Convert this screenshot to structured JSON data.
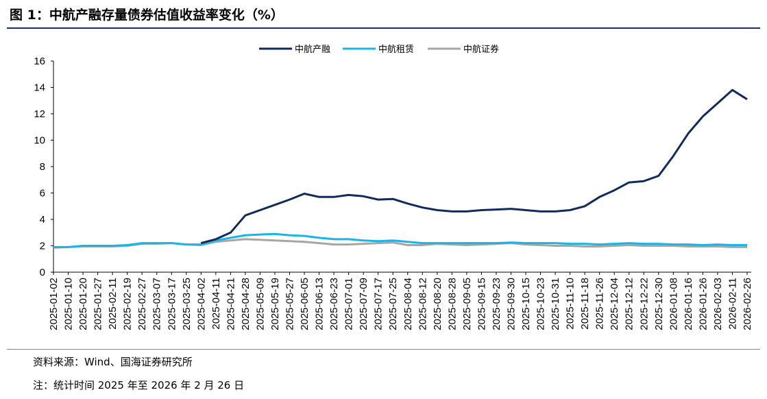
{
  "title": "图 1：中航产融存量债券估值收益率变化（%）",
  "footer": {
    "source": "资料来源：Wind、国海证券研究所",
    "note": "注：统计时间 2025 年至 2026 年 2 月 26 日"
  },
  "chart_data": {
    "type": "line",
    "title": "中航产融存量债券估值收益率变化（%）",
    "xlabel": "",
    "ylabel": "",
    "ylim": [
      0,
      16
    ],
    "yticks": [
      0,
      2,
      4,
      6,
      8,
      10,
      12,
      14,
      16
    ],
    "legend_position": "top-center",
    "grid": false,
    "x": [
      "2025-01-02",
      "2025-01-10",
      "2025-01-20",
      "2025-01-27",
      "2025-02-11",
      "2025-02-19",
      "2025-02-27",
      "2025-03-07",
      "2025-03-17",
      "2025-03-25",
      "2025-04-02",
      "2025-04-11",
      "2025-04-21",
      "2025-04-28",
      "2025-05-09",
      "2025-05-19",
      "2025-05-27",
      "2025-06-05",
      "2025-06-13",
      "2025-06-23",
      "2025-07-01",
      "2025-07-09",
      "2025-07-17",
      "2025-07-25",
      "2025-08-04",
      "2025-08-12",
      "2025-08-20",
      "2025-08-28",
      "2025-09-05",
      "2025-09-15",
      "2025-09-23",
      "2025-09-30",
      "2025-10-15",
      "2025-10-23",
      "2025-10-31",
      "2025-11-10",
      "2025-11-18",
      "2025-11-26",
      "2025-12-04",
      "2025-12-12",
      "2025-12-22",
      "2025-12-30",
      "2026-01-08",
      "2026-01-16",
      "2026-01-26",
      "2026-02-03",
      "2026-02-11",
      "2026-02-26"
    ],
    "series": [
      {
        "name": "中航产融",
        "color": "#0f2a5e",
        "values": [
          null,
          null,
          null,
          null,
          null,
          null,
          null,
          null,
          null,
          null,
          2.2,
          2.5,
          3.0,
          4.3,
          4.7,
          5.1,
          5.5,
          5.95,
          5.7,
          5.7,
          5.85,
          5.75,
          5.5,
          5.55,
          5.2,
          4.9,
          4.7,
          4.6,
          4.6,
          4.7,
          4.75,
          4.8,
          4.7,
          4.6,
          4.6,
          4.7,
          5.0,
          5.7,
          6.2,
          6.8,
          6.9,
          7.3,
          8.8,
          10.5,
          11.8,
          12.8,
          13.8,
          13.1
        ]
      },
      {
        "name": "中航租赁",
        "color": "#19b4e8",
        "values": [
          1.9,
          1.9,
          2.0,
          2.0,
          2.0,
          2.05,
          2.2,
          2.2,
          2.2,
          2.1,
          2.1,
          2.4,
          2.6,
          2.8,
          2.85,
          2.9,
          2.8,
          2.75,
          2.6,
          2.5,
          2.5,
          2.4,
          2.35,
          2.4,
          2.3,
          2.2,
          2.2,
          2.2,
          2.2,
          2.2,
          2.2,
          2.25,
          2.2,
          2.2,
          2.2,
          2.15,
          2.15,
          2.1,
          2.15,
          2.2,
          2.15,
          2.15,
          2.1,
          2.1,
          2.05,
          2.1,
          2.05,
          2.05
        ]
      },
      {
        "name": "中航证券",
        "color": "#a6a6a6",
        "values": [
          1.85,
          1.9,
          1.95,
          1.95,
          1.95,
          2.0,
          2.15,
          2.15,
          2.2,
          2.1,
          2.05,
          2.3,
          2.4,
          2.5,
          2.45,
          2.4,
          2.35,
          2.3,
          2.2,
          2.1,
          2.1,
          2.15,
          2.2,
          2.25,
          2.05,
          2.05,
          2.15,
          2.1,
          2.05,
          2.1,
          2.15,
          2.2,
          2.1,
          2.05,
          2.0,
          2.0,
          1.95,
          1.95,
          2.0,
          2.05,
          2.0,
          2.0,
          2.0,
          1.95,
          1.95,
          1.95,
          1.9,
          1.9
        ]
      }
    ]
  }
}
